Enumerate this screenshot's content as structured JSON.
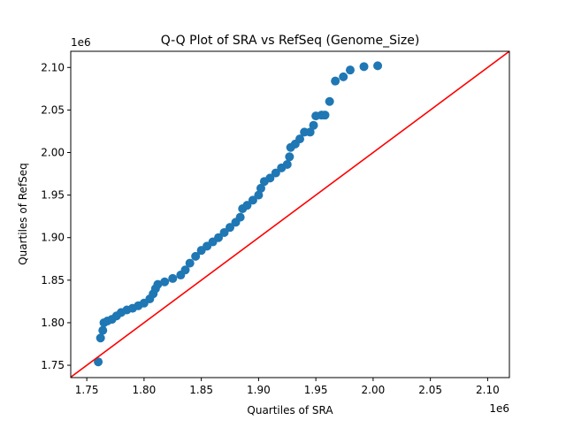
{
  "chart_data": {
    "type": "scatter",
    "title": "Q-Q Plot of SRA vs RefSeq (Genome_Size)",
    "xlabel": "Quartiles of SRA",
    "ylabel": "Quartiles of RefSeq",
    "x_offset_label": "1e6",
    "y_offset_label": "1e6",
    "xlim": [
      1.736,
      2.119
    ],
    "ylim": [
      1.7355,
      2.119
    ],
    "xticks": [
      "1.75",
      "1.80",
      "1.85",
      "1.90",
      "1.95",
      "2.00",
      "2.05",
      "2.10"
    ],
    "yticks": [
      "1.75",
      "1.80",
      "1.85",
      "1.90",
      "1.95",
      "2.00",
      "2.05",
      "2.10"
    ],
    "grid": false,
    "colors": {
      "points": "#1f77b4",
      "reference_line": "#ff0000"
    },
    "reference_line": {
      "type": "y=x"
    },
    "points": [
      [
        1.76,
        1.754
      ],
      [
        1.762,
        1.782
      ],
      [
        1.764,
        1.791
      ],
      [
        1.765,
        1.8
      ],
      [
        1.768,
        1.802
      ],
      [
        1.772,
        1.804
      ],
      [
        1.776,
        1.808
      ],
      [
        1.78,
        1.812
      ],
      [
        1.785,
        1.815
      ],
      [
        1.79,
        1.817
      ],
      [
        1.795,
        1.82
      ],
      [
        1.8,
        1.823
      ],
      [
        1.805,
        1.828
      ],
      [
        1.808,
        1.834
      ],
      [
        1.81,
        1.84
      ],
      [
        1.812,
        1.845
      ],
      [
        1.818,
        1.848
      ],
      [
        1.825,
        1.852
      ],
      [
        1.832,
        1.856
      ],
      [
        1.836,
        1.862
      ],
      [
        1.84,
        1.87
      ],
      [
        1.845,
        1.878
      ],
      [
        1.85,
        1.885
      ],
      [
        1.855,
        1.89
      ],
      [
        1.86,
        1.895
      ],
      [
        1.865,
        1.9
      ],
      [
        1.87,
        1.906
      ],
      [
        1.875,
        1.912
      ],
      [
        1.88,
        1.918
      ],
      [
        1.884,
        1.924
      ],
      [
        1.886,
        1.934
      ],
      [
        1.89,
        1.938
      ],
      [
        1.895,
        1.944
      ],
      [
        1.9,
        1.95
      ],
      [
        1.902,
        1.958
      ],
      [
        1.905,
        1.966
      ],
      [
        1.91,
        1.97
      ],
      [
        1.915,
        1.976
      ],
      [
        1.92,
        1.982
      ],
      [
        1.925,
        1.986
      ],
      [
        1.927,
        1.995
      ],
      [
        1.928,
        2.006
      ],
      [
        1.932,
        2.01
      ],
      [
        1.936,
        2.016
      ],
      [
        1.94,
        2.024
      ],
      [
        1.945,
        2.024
      ],
      [
        1.948,
        2.032
      ],
      [
        1.95,
        2.043
      ],
      [
        1.955,
        2.044
      ],
      [
        1.958,
        2.044
      ],
      [
        1.962,
        2.06
      ],
      [
        1.967,
        2.084
      ],
      [
        1.974,
        2.089
      ],
      [
        1.98,
        2.097
      ],
      [
        1.992,
        2.101
      ],
      [
        2.004,
        2.102
      ]
    ]
  }
}
